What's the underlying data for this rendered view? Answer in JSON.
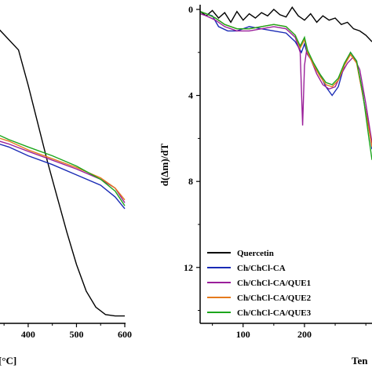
{
  "chart_data": [
    {
      "type": "line",
      "panel": "left",
      "xlabel": "[°C]",
      "ylabel": "",
      "x_ticks": [
        400,
        500,
        600
      ],
      "x_tick_labels": [
        "400",
        "500",
        "600"
      ],
      "xlim": [
        340,
        600
      ],
      "ylim": [
        -5,
        105
      ],
      "series": [
        {
          "color": "#000000",
          "x": [
            340,
            380,
            400,
            420,
            440,
            460,
            480,
            500,
            520,
            540,
            560,
            580,
            600
          ],
          "y": [
            95,
            88,
            76,
            63,
            50,
            38,
            26,
            15,
            6,
            0.5,
            -2,
            -2.5,
            -2.5
          ]
        },
        {
          "color": "#1a2bb5",
          "x": [
            340,
            360,
            400,
            450,
            500,
            550,
            580,
            600
          ],
          "y": [
            56,
            55,
            52,
            49,
            45.5,
            42,
            38,
            34
          ]
        },
        {
          "color": "#9a1f9a",
          "x": [
            340,
            360,
            400,
            450,
            500,
            550,
            580,
            600
          ],
          "y": [
            57,
            56,
            53.5,
            50.5,
            47.5,
            44,
            41,
            36
          ]
        },
        {
          "color": "#e57a1d",
          "x": [
            340,
            360,
            400,
            450,
            500,
            550,
            580,
            600
          ],
          "y": [
            58,
            57,
            54,
            51,
            48,
            44.5,
            41,
            37
          ]
        },
        {
          "color": "#1ca61c",
          "x": [
            340,
            360,
            400,
            450,
            500,
            550,
            580,
            600
          ],
          "y": [
            59,
            57.5,
            55,
            52,
            48.5,
            44,
            40,
            35
          ]
        }
      ]
    },
    {
      "type": "line",
      "panel": "right",
      "xlabel": "Ten",
      "ylabel": "d(Δm)/dT",
      "y_ticks": [
        0,
        4,
        8,
        12
      ],
      "y_tick_labels": [
        "0",
        "4",
        "8",
        "12"
      ],
      "x_ticks": [
        100,
        200
      ],
      "x_tick_labels": [
        "100",
        "200"
      ],
      "xlim": [
        30,
        310
      ],
      "ylim": [
        0,
        14.6
      ],
      "y_inverted": true,
      "legend_position": "bottom-left",
      "series": [
        {
          "name": "Quercetin",
          "color": "#000000",
          "x": [
            30,
            40,
            50,
            60,
            70,
            80,
            90,
            100,
            110,
            120,
            130,
            140,
            150,
            160,
            170,
            180,
            190,
            200,
            210,
            220,
            230,
            240,
            250,
            260,
            270,
            280,
            290,
            300,
            310
          ],
          "y": [
            0.1,
            0.3,
            0.05,
            0.4,
            0.15,
            0.6,
            0.1,
            0.5,
            0.2,
            0.4,
            0.15,
            0.3,
            0.0,
            0.25,
            0.35,
            -0.1,
            0.3,
            0.5,
            0.2,
            0.6,
            0.3,
            0.5,
            0.4,
            0.7,
            0.6,
            0.9,
            1.0,
            1.2,
            1.5
          ]
        },
        {
          "name": "Ch/ChCl-CA",
          "color": "#1a2bb5",
          "x": [
            30,
            40,
            50,
            60,
            75,
            90,
            100,
            110,
            130,
            150,
            170,
            185,
            195,
            200,
            205,
            215,
            225,
            235,
            245,
            255,
            265,
            275,
            285,
            295,
            305,
            310
          ],
          "y": [
            0.1,
            0.2,
            0.3,
            0.8,
            1.0,
            1.0,
            0.9,
            0.8,
            0.9,
            1.0,
            1.1,
            1.5,
            2.0,
            1.6,
            2.1,
            2.5,
            3.0,
            3.6,
            4.0,
            3.6,
            2.6,
            2.0,
            2.4,
            4.0,
            5.5,
            6.5
          ]
        },
        {
          "name": "Ch/ChCl-CA/QUE1",
          "color": "#9a1f9a",
          "x": [
            30,
            40,
            55,
            70,
            90,
            110,
            130,
            150,
            170,
            185,
            193,
            197,
            200,
            203,
            210,
            220,
            230,
            240,
            250,
            260,
            270,
            280,
            290,
            300,
            310
          ],
          "y": [
            0.2,
            0.3,
            0.5,
            0.8,
            1.0,
            1.0,
            0.9,
            0.8,
            0.9,
            1.3,
            2.0,
            5.4,
            2.6,
            2.0,
            2.3,
            3.0,
            3.5,
            3.7,
            3.6,
            3.0,
            2.5,
            2.2,
            2.8,
            4.4,
            6.2
          ]
        },
        {
          "name": "Ch/ChCl-CA/QUE2",
          "color": "#e57a1d",
          "x": [
            30,
            40,
            55,
            70,
            90,
            110,
            130,
            150,
            170,
            185,
            193,
            200,
            205,
            215,
            225,
            235,
            245,
            255,
            265,
            275,
            285,
            295,
            305,
            310
          ],
          "y": [
            0.1,
            0.2,
            0.4,
            0.7,
            0.9,
            0.9,
            0.8,
            0.7,
            0.8,
            1.2,
            1.8,
            1.4,
            2.0,
            2.6,
            3.1,
            3.5,
            3.6,
            3.3,
            2.6,
            2.1,
            2.5,
            4.0,
            5.6,
            6.4
          ]
        },
        {
          "name": "Ch/ChCl-CA/QUE3",
          "color": "#1ca61c",
          "x": [
            30,
            40,
            55,
            70,
            90,
            110,
            130,
            150,
            170,
            185,
            193,
            200,
            205,
            215,
            225,
            235,
            245,
            255,
            265,
            275,
            285,
            295,
            305,
            310
          ],
          "y": [
            0.1,
            0.2,
            0.4,
            0.7,
            0.9,
            0.9,
            0.8,
            0.7,
            0.8,
            1.2,
            1.7,
            1.3,
            1.9,
            2.5,
            3.0,
            3.4,
            3.5,
            3.2,
            2.5,
            2.0,
            2.4,
            3.9,
            6.0,
            7.0
          ]
        }
      ]
    }
  ]
}
